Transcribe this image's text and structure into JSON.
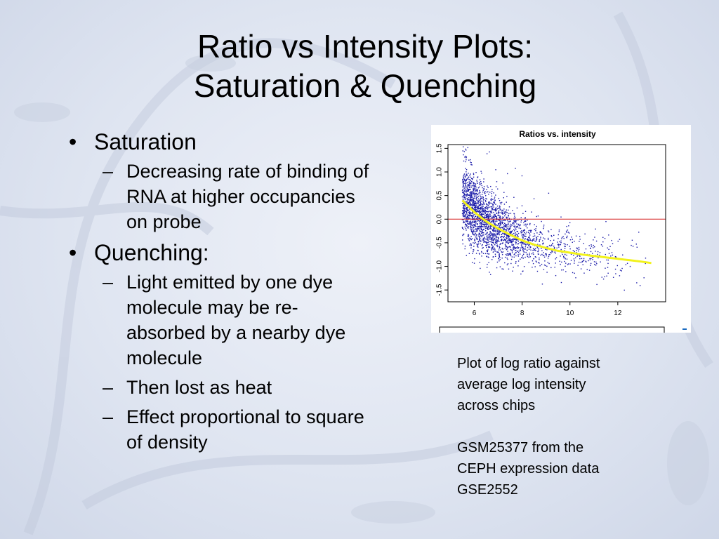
{
  "slide": {
    "title_line1": "Ratio vs Intensity Plots:",
    "title_line2": "Saturation & Quenching",
    "bullets": [
      {
        "text": "Saturation",
        "subs": [
          "Decreasing rate of binding of RNA at higher occupancies on probe"
        ]
      },
      {
        "text": "Quenching:",
        "subs": [
          "Light emitted by one dye molecule may be re-absorbed by a nearby dye molecule",
          "Then lost as heat",
          "Effect proportional to square of density"
        ]
      }
    ],
    "caption_line1": "Plot of log ratio against",
    "caption_line2": "average log intensity",
    "caption_line3": "across chips",
    "caption_line4": "GSM25377 from the",
    "caption_line5": "CEPH expression data",
    "caption_line6": "GSE2552",
    "bullet_glyph": "•",
    "dash_glyph": "–"
  },
  "chart_data": {
    "type": "scatter",
    "title": "Ratios vs. intensity",
    "xlabel": "",
    "ylabel": "",
    "xlim": [
      4.9,
      14.0
    ],
    "ylim": [
      -1.75,
      1.58
    ],
    "x_ticks": [
      6,
      8,
      10,
      12
    ],
    "y_ticks": [
      1.5,
      1.0,
      0.5,
      0.0,
      -0.5,
      -1.0,
      -1.5
    ],
    "y_tick_labels": [
      "1.5",
      "1.0",
      "0.5",
      "0.0",
      "-0.5",
      "-1.0",
      "-1.5"
    ],
    "grid": false,
    "reference_line": {
      "y": 0.0,
      "color": "#d62020"
    },
    "point_color": "#1a1aa8",
    "trend_color": "#f2f21a",
    "trend": {
      "x": [
        5.5,
        6.0,
        6.5,
        7.0,
        7.5,
        8.0,
        8.5,
        9.0,
        9.5,
        10.0,
        10.5,
        11.0,
        11.5,
        12.0,
        12.5,
        13.0,
        13.4
      ],
      "y": [
        0.4,
        0.15,
        -0.05,
        -0.2,
        -0.33,
        -0.45,
        -0.54,
        -0.61,
        -0.67,
        -0.71,
        -0.75,
        -0.78,
        -0.81,
        -0.84,
        -0.87,
        -0.9,
        -0.93
      ]
    },
    "point_count": 2400
  }
}
